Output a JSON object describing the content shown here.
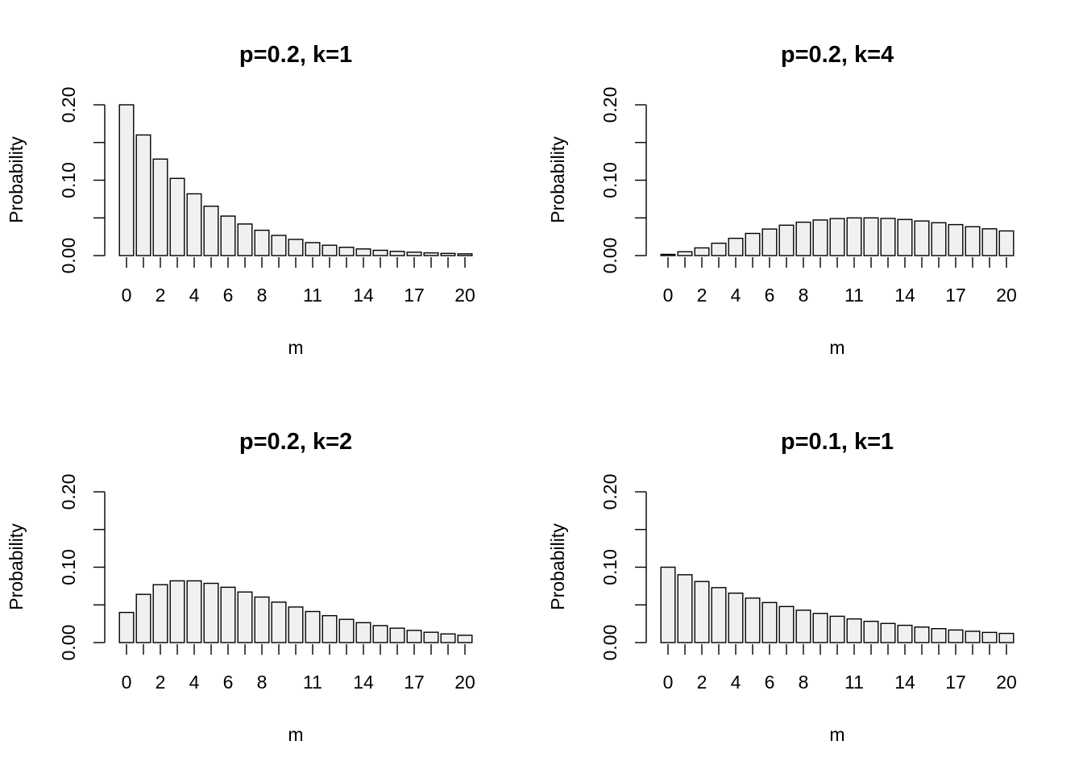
{
  "chart_data": [
    {
      "type": "bar",
      "title": "p=0.2, k=1",
      "xlabel": "m",
      "ylabel": "Probability",
      "categories": [
        0,
        1,
        2,
        3,
        4,
        5,
        6,
        7,
        8,
        9,
        10,
        11,
        12,
        13,
        14,
        15,
        16,
        17,
        18,
        19,
        20
      ],
      "x_tick_labels": [
        "0",
        "2",
        "4",
        "6",
        "8",
        "11",
        "14",
        "17",
        "20"
      ],
      "y_tick_labels": [
        "0.00",
        "0.10",
        "0.20"
      ],
      "ylim": [
        0,
        0.2
      ],
      "values": [
        0.2,
        0.16,
        0.128,
        0.1024,
        0.0819,
        0.0655,
        0.0524,
        0.0419,
        0.0336,
        0.0268,
        0.0215,
        0.0172,
        0.0137,
        0.011,
        0.0088,
        0.007,
        0.0056,
        0.0045,
        0.0036,
        0.0029,
        0.0023
      ]
    },
    {
      "type": "bar",
      "title": "p=0.2, k=4",
      "xlabel": "m",
      "ylabel": "Probability",
      "categories": [
        0,
        1,
        2,
        3,
        4,
        5,
        6,
        7,
        8,
        9,
        10,
        11,
        12,
        13,
        14,
        15,
        16,
        17,
        18,
        19,
        20
      ],
      "x_tick_labels": [
        "0",
        "2",
        "4",
        "6",
        "8",
        "11",
        "14",
        "17",
        "20"
      ],
      "y_tick_labels": [
        "0.00",
        "0.10",
        "0.20"
      ],
      "ylim": [
        0,
        0.2
      ],
      "values": [
        0.0016,
        0.0051,
        0.0102,
        0.0164,
        0.0229,
        0.0294,
        0.0352,
        0.0403,
        0.0443,
        0.0472,
        0.0491,
        0.05,
        0.05,
        0.0493,
        0.0479,
        0.0459,
        0.0436,
        0.0411,
        0.0383,
        0.0355,
        0.0327
      ]
    },
    {
      "type": "bar",
      "title": "p=0.2, k=2",
      "xlabel": "m",
      "ylabel": "Probability",
      "categories": [
        0,
        1,
        2,
        3,
        4,
        5,
        6,
        7,
        8,
        9,
        10,
        11,
        12,
        13,
        14,
        15,
        16,
        17,
        18,
        19,
        20
      ],
      "x_tick_labels": [
        "0",
        "2",
        "4",
        "6",
        "8",
        "11",
        "14",
        "17",
        "20"
      ],
      "y_tick_labels": [
        "0.00",
        "0.10",
        "0.20"
      ],
      "ylim": [
        0,
        0.2
      ],
      "values": [
        0.04,
        0.064,
        0.0768,
        0.0819,
        0.0819,
        0.0786,
        0.0734,
        0.0671,
        0.0604,
        0.0537,
        0.0472,
        0.0412,
        0.0357,
        0.0308,
        0.0264,
        0.0225,
        0.0191,
        0.0162,
        0.0137,
        0.0115,
        0.0097
      ]
    },
    {
      "type": "bar",
      "title": "p=0.1, k=1",
      "xlabel": "m",
      "ylabel": "Probability",
      "categories": [
        0,
        1,
        2,
        3,
        4,
        5,
        6,
        7,
        8,
        9,
        10,
        11,
        12,
        13,
        14,
        15,
        16,
        17,
        18,
        19,
        20
      ],
      "x_tick_labels": [
        "0",
        "2",
        "4",
        "6",
        "8",
        "11",
        "14",
        "17",
        "20"
      ],
      "y_tick_labels": [
        "0.00",
        "0.10",
        "0.20"
      ],
      "ylim": [
        0,
        0.2
      ],
      "values": [
        0.1,
        0.09,
        0.081,
        0.0729,
        0.0656,
        0.059,
        0.0531,
        0.0478,
        0.043,
        0.0387,
        0.0349,
        0.0314,
        0.0282,
        0.0254,
        0.0229,
        0.0206,
        0.0185,
        0.0167,
        0.015,
        0.0135,
        0.0122
      ]
    }
  ],
  "colors": {
    "bar_fill": "#f0f0f0",
    "bar_stroke": "#000000"
  }
}
